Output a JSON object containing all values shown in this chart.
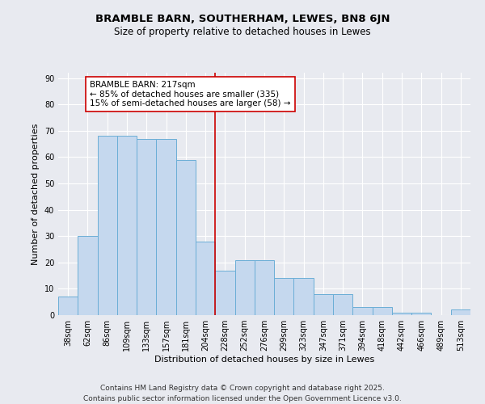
{
  "title": "BRAMBLE BARN, SOUTHERHAM, LEWES, BN8 6JN",
  "subtitle": "Size of property relative to detached houses in Lewes",
  "xlabel": "Distribution of detached houses by size in Lewes",
  "ylabel": "Number of detached properties",
  "categories": [
    "38sqm",
    "62sqm",
    "86sqm",
    "109sqm",
    "133sqm",
    "157sqm",
    "181sqm",
    "204sqm",
    "228sqm",
    "252sqm",
    "276sqm",
    "299sqm",
    "323sqm",
    "347sqm",
    "371sqm",
    "394sqm",
    "418sqm",
    "442sqm",
    "466sqm",
    "489sqm",
    "513sqm"
  ],
  "values": [
    7,
    30,
    68,
    68,
    67,
    67,
    59,
    28,
    17,
    21,
    21,
    14,
    14,
    8,
    8,
    3,
    3,
    1,
    1,
    0,
    2
  ],
  "bar_color": "#c5d8ee",
  "bar_edge_color": "#6baed6",
  "background_color": "#e8eaf0",
  "grid_color": "#ffffff",
  "vline_color": "#cc0000",
  "annotation_title": "BRAMBLE BARN: 217sqm",
  "annotation_line1": "← 85% of detached houses are smaller (335)",
  "annotation_line2": "15% of semi-detached houses are larger (58) →",
  "annotation_box_color": "#ffffff",
  "annotation_box_edge": "#cc0000",
  "ylim": [
    0,
    92
  ],
  "yticks": [
    0,
    10,
    20,
    30,
    40,
    50,
    60,
    70,
    80,
    90
  ],
  "footer1": "Contains HM Land Registry data © Crown copyright and database right 2025.",
  "footer2": "Contains public sector information licensed under the Open Government Licence v3.0.",
  "title_fontsize": 9.5,
  "subtitle_fontsize": 8.5,
  "axis_label_fontsize": 8,
  "tick_fontsize": 7,
  "annotation_fontsize": 7.5,
  "footer_fontsize": 6.5
}
